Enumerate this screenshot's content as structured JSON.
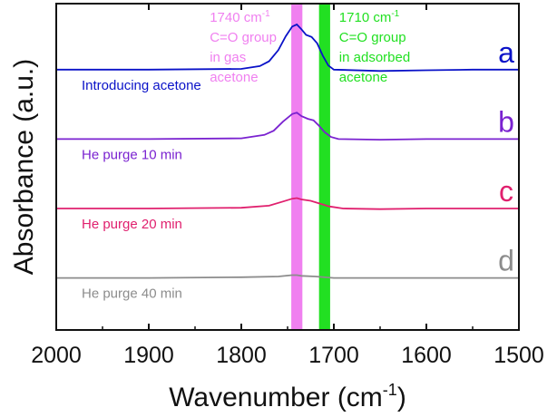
{
  "chart_data": {
    "type": "line",
    "title": "",
    "xlabel": "Wavenumber (cm",
    "xlabel_sup": "-1",
    "xlabel_tail": ")",
    "ylabel": "Absorbance (a.u.)",
    "xlim": [
      2000,
      1500
    ],
    "x_reversed": true,
    "x_ticks": [
      2000,
      1900,
      1800,
      1700,
      1600,
      1500
    ],
    "x_tick_labels": [
      "2000",
      "1900",
      "1800",
      "1700",
      "1600",
      "1500"
    ],
    "y_ticks_shown": false,
    "grid": false,
    "series": [
      {
        "name": "Introducing acetone",
        "letter": "a",
        "color": "#0a12c8",
        "baseline": 1.0,
        "points": [
          [
            2000,
            1.0
          ],
          [
            1900,
            1.0
          ],
          [
            1800,
            1.01
          ],
          [
            1780,
            1.05
          ],
          [
            1770,
            1.12
          ],
          [
            1760,
            1.28
          ],
          [
            1752,
            1.48
          ],
          [
            1745,
            1.62
          ],
          [
            1740,
            1.65
          ],
          [
            1735,
            1.58
          ],
          [
            1730,
            1.5
          ],
          [
            1724,
            1.47
          ],
          [
            1718,
            1.38
          ],
          [
            1712,
            1.2
          ],
          [
            1706,
            1.06
          ],
          [
            1700,
            1.0
          ],
          [
            1650,
            0.98
          ],
          [
            1600,
            0.99
          ],
          [
            1550,
            1.0
          ],
          [
            1500,
            1.0
          ]
        ]
      },
      {
        "name": "He purge 10 min",
        "letter": "b",
        "color": "#7a22d0",
        "baseline": 0.0,
        "points": [
          [
            2000,
            0.0
          ],
          [
            1900,
            0.0
          ],
          [
            1800,
            0.01
          ],
          [
            1775,
            0.06
          ],
          [
            1765,
            0.12
          ],
          [
            1755,
            0.25
          ],
          [
            1745,
            0.36
          ],
          [
            1740,
            0.38
          ],
          [
            1735,
            0.33
          ],
          [
            1728,
            0.29
          ],
          [
            1722,
            0.27
          ],
          [
            1716,
            0.19
          ],
          [
            1710,
            0.1
          ],
          [
            1703,
            0.03
          ],
          [
            1695,
            0.0
          ],
          [
            1650,
            -0.01
          ],
          [
            1600,
            0.0
          ],
          [
            1550,
            0.0
          ],
          [
            1500,
            0.0
          ]
        ]
      },
      {
        "name": "He purge 20 min",
        "letter": "c",
        "color": "#e0206e",
        "baseline": -1.0,
        "points": [
          [
            2000,
            -1.0
          ],
          [
            1900,
            -1.0
          ],
          [
            1800,
            -0.99
          ],
          [
            1770,
            -0.96
          ],
          [
            1755,
            -0.9
          ],
          [
            1745,
            -0.86
          ],
          [
            1740,
            -0.85
          ],
          [
            1735,
            -0.87
          ],
          [
            1725,
            -0.89
          ],
          [
            1715,
            -0.93
          ],
          [
            1705,
            -0.97
          ],
          [
            1690,
            -1.0
          ],
          [
            1650,
            -1.01
          ],
          [
            1600,
            -1.0
          ],
          [
            1550,
            -1.0
          ],
          [
            1500,
            -1.0
          ]
        ]
      },
      {
        "name": "He purge 40 min",
        "letter": "d",
        "color": "#8c8c8c",
        "baseline": -2.0,
        "points": [
          [
            2000,
            -2.0
          ],
          [
            1900,
            -2.0
          ],
          [
            1800,
            -1.99
          ],
          [
            1760,
            -1.98
          ],
          [
            1745,
            -1.96
          ],
          [
            1740,
            -1.96
          ],
          [
            1735,
            -1.97
          ],
          [
            1720,
            -1.98
          ],
          [
            1700,
            -2.0
          ],
          [
            1650,
            -2.0
          ],
          [
            1600,
            -2.0
          ],
          [
            1550,
            -2.0
          ],
          [
            1500,
            -2.0
          ]
        ]
      }
    ],
    "bands": [
      {
        "center": 1740,
        "width": 12,
        "color": "#f080f0",
        "text_color": "#f080f0",
        "lines": [
          "1740 cm",
          "C=O group",
          "in gas",
          "acetone"
        ],
        "sup": "-1"
      },
      {
        "center": 1710,
        "width": 12,
        "color": "#22e022",
        "text_color": "#22e022",
        "lines": [
          "1710 cm",
          "C=O group",
          "in adsorbed",
          "acetone"
        ],
        "sup": "-1"
      }
    ]
  }
}
